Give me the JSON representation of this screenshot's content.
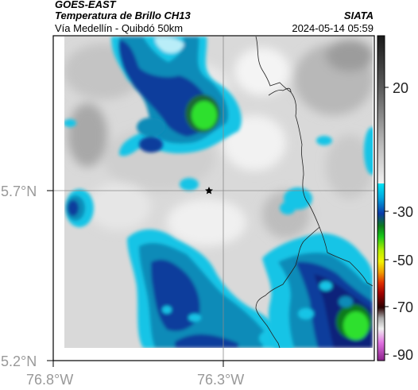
{
  "header": {
    "satellite": "GOES-EAST",
    "product": "Temperatura de Brillo CH13",
    "organization": "SIATA",
    "location": "Vía Medellín - Quibdó 50km",
    "datetime": "2024-05-14 05:59"
  },
  "axes": {
    "lat_ticks": [
      "5.7°N",
      "5.2°N"
    ],
    "lon_ticks": [
      "76.8°W",
      "76.3°W"
    ]
  },
  "colorbar": {
    "ticks": [
      "20",
      "-30",
      "-50",
      "-70",
      "-90"
    ],
    "colors": {
      "top": "#111111",
      "mid_gray": "#9a9a9a",
      "cyan": "#00d8f0",
      "blue": "#0a3aa8",
      "green": "#19c919",
      "yellow": "#f2f200",
      "red": "#d01010",
      "magenta": "#c050c0"
    }
  },
  "map": {
    "marker_icon": "star-icon",
    "cloud_colors": {
      "light_gray": "#d8d8d8",
      "cyan": "#16c4e6",
      "teal": "#0a8bb8",
      "blue": "#0c3d9c",
      "navy": "#07207a",
      "green": "#2ee02e"
    }
  }
}
